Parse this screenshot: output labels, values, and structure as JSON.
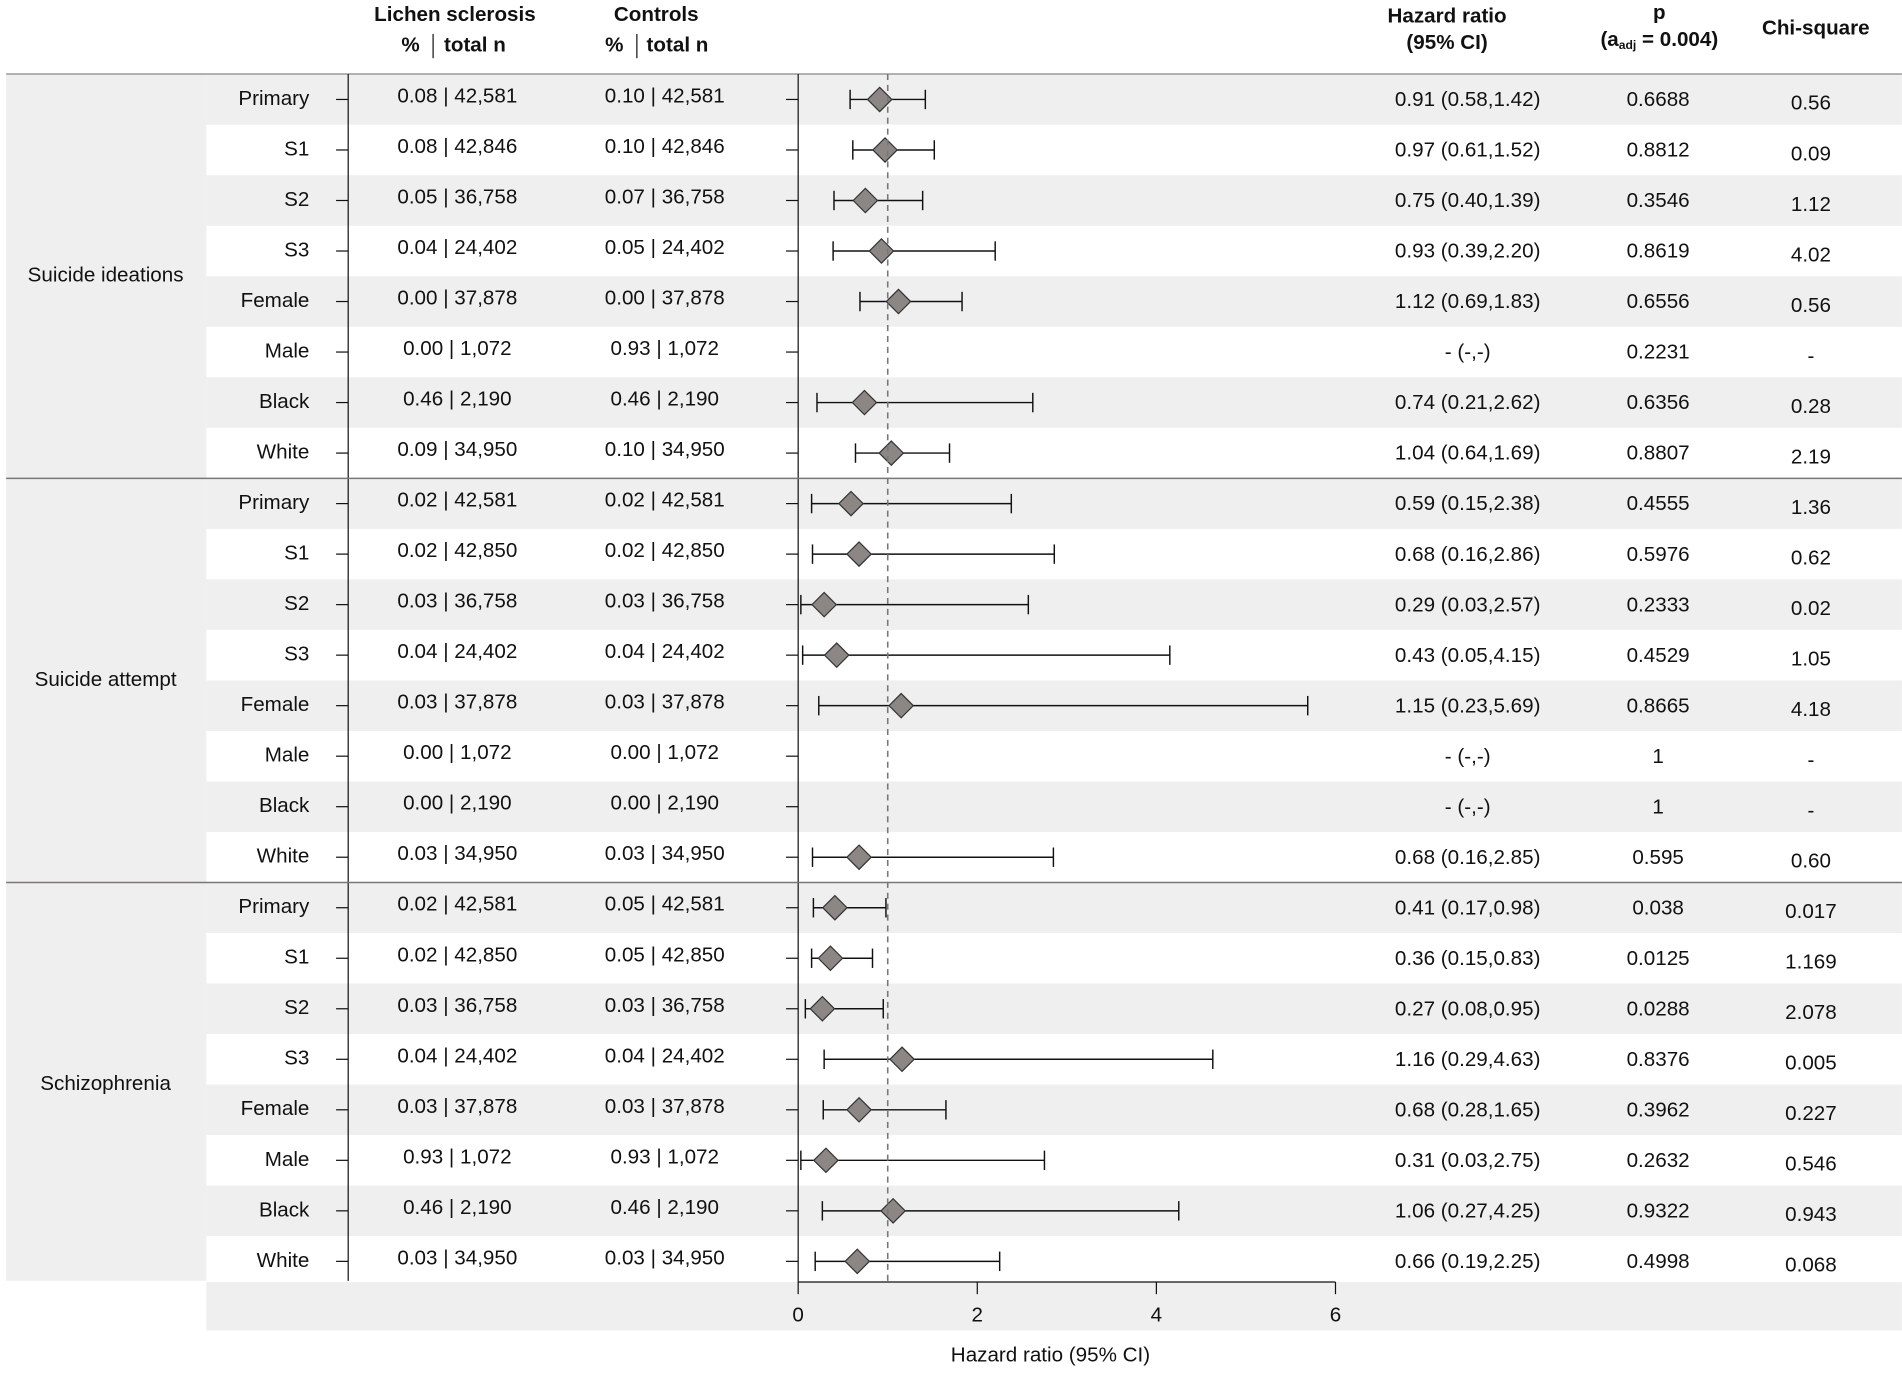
{
  "headers": {
    "lichen": {
      "title": "Lichen sclerosis",
      "pct": "%",
      "n": "total n"
    },
    "controls": {
      "title": "Controls",
      "pct": "%",
      "n": "total n"
    },
    "hr": {
      "title": "Hazard ratio",
      "sub": "(95% CI)"
    },
    "p": {
      "title": "p",
      "pre": "(a",
      "sub": "adj",
      "post": " = 0.004)"
    },
    "chi": {
      "title": "Chi-square"
    }
  },
  "chart_data": {
    "type": "forest",
    "xlabel": "Hazard ratio (95% CI)",
    "xlim": [
      0,
      6
    ],
    "xticks": [
      0,
      2,
      4,
      6
    ],
    "ref_line": 1,
    "marker_color": "#8c8785",
    "groups": [
      {
        "name": "Suicide ideations",
        "rows": [
          {
            "label": "Primary",
            "ls": "0.08 | 42,581",
            "ctrl": "0.10 | 42,581",
            "hr": 0.91,
            "lo": 0.58,
            "hi": 1.42,
            "hr_label": "0.91 (0.58,1.42)",
            "p": "0.6688",
            "chi": "0.56"
          },
          {
            "label": "S1",
            "ls": "0.08 | 42,846",
            "ctrl": "0.10 | 42,846",
            "hr": 0.97,
            "lo": 0.61,
            "hi": 1.52,
            "hr_label": "0.97 (0.61,1.52)",
            "p": "0.8812",
            "chi": "0.09"
          },
          {
            "label": "S2",
            "ls": "0.05 | 36,758",
            "ctrl": "0.07 | 36,758",
            "hr": 0.75,
            "lo": 0.4,
            "hi": 1.39,
            "hr_label": "0.75 (0.40,1.39)",
            "p": "0.3546",
            "chi": "1.12"
          },
          {
            "label": "S3",
            "ls": "0.04 | 24,402",
            "ctrl": "0.05 | 24,402",
            "hr": 0.93,
            "lo": 0.39,
            "hi": 2.2,
            "hr_label": "0.93 (0.39,2.20)",
            "p": "0.8619",
            "chi": "4.02"
          },
          {
            "label": "Female",
            "ls": "0.00 | 37,878",
            "ctrl": "0.00 | 37,878",
            "hr": 1.12,
            "lo": 0.69,
            "hi": 1.83,
            "hr_label": "1.12 (0.69,1.83)",
            "p": "0.6556",
            "chi": "0.56"
          },
          {
            "label": "Male",
            "ls": "0.00 | 1,072",
            "ctrl": "0.93 | 1,072",
            "hr": null,
            "lo": null,
            "hi": null,
            "hr_label": "- (-,-)",
            "p": "0.2231",
            "chi": "-"
          },
          {
            "label": "Black",
            "ls": "0.46 | 2,190",
            "ctrl": "0.46 | 2,190",
            "hr": 0.74,
            "lo": 0.21,
            "hi": 2.62,
            "hr_label": "0.74 (0.21,2.62)",
            "p": "0.6356",
            "chi": "0.28"
          },
          {
            "label": "White",
            "ls": "0.09 | 34,950",
            "ctrl": "0.10 | 34,950",
            "hr": 1.04,
            "lo": 0.64,
            "hi": 1.69,
            "hr_label": "1.04 (0.64,1.69)",
            "p": "0.8807",
            "chi": "2.19"
          }
        ]
      },
      {
        "name": "Suicide attempt",
        "rows": [
          {
            "label": "Primary",
            "ls": "0.02 | 42,581",
            "ctrl": "0.02 | 42,581",
            "hr": 0.59,
            "lo": 0.15,
            "hi": 2.38,
            "hr_label": "0.59 (0.15,2.38)",
            "p": "0.4555",
            "chi": "1.36"
          },
          {
            "label": "S1",
            "ls": "0.02 | 42,850",
            "ctrl": "0.02 | 42,850",
            "hr": 0.68,
            "lo": 0.16,
            "hi": 2.86,
            "hr_label": "0.68 (0.16,2.86)",
            "p": "0.5976",
            "chi": "0.62"
          },
          {
            "label": "S2",
            "ls": "0.03 | 36,758",
            "ctrl": "0.03 | 36,758",
            "hr": 0.29,
            "lo": 0.03,
            "hi": 2.57,
            "hr_label": "0.29 (0.03,2.57)",
            "p": "0.2333",
            "chi": "0.02"
          },
          {
            "label": "S3",
            "ls": "0.04 | 24,402",
            "ctrl": "0.04 | 24,402",
            "hr": 0.43,
            "lo": 0.05,
            "hi": 4.15,
            "hr_label": "0.43 (0.05,4.15)",
            "p": "0.4529",
            "chi": "1.05"
          },
          {
            "label": "Female",
            "ls": "0.03 | 37,878",
            "ctrl": "0.03 | 37,878",
            "hr": 1.15,
            "lo": 0.23,
            "hi": 5.69,
            "hr_label": "1.15 (0.23,5.69)",
            "p": "0.8665",
            "chi": "4.18"
          },
          {
            "label": "Male",
            "ls": "0.00 | 1,072",
            "ctrl": "0.00 | 1,072",
            "hr": null,
            "lo": null,
            "hi": null,
            "hr_label": "- (-,-)",
            "p": "1",
            "chi": "-"
          },
          {
            "label": "Black",
            "ls": "0.00 | 2,190",
            "ctrl": "0.00 | 2,190",
            "hr": null,
            "lo": null,
            "hi": null,
            "hr_label": "- (-,-)",
            "p": "1",
            "chi": "-"
          },
          {
            "label": "White",
            "ls": "0.03 | 34,950",
            "ctrl": "0.03 | 34,950",
            "hr": 0.68,
            "lo": 0.16,
            "hi": 2.85,
            "hr_label": "0.68 (0.16,2.85)",
            "p": "0.595",
            "chi": "0.60"
          }
        ]
      },
      {
        "name": "Schizophrenia",
        "rows": [
          {
            "label": "Primary",
            "ls": "0.02 | 42,581",
            "ctrl": "0.05 | 42,581",
            "hr": 0.41,
            "lo": 0.17,
            "hi": 0.98,
            "hr_label": "0.41 (0.17,0.98)",
            "p": "0.038",
            "chi": "0.017"
          },
          {
            "label": "S1",
            "ls": "0.02 | 42,850",
            "ctrl": "0.05 | 42,850",
            "hr": 0.36,
            "lo": 0.15,
            "hi": 0.83,
            "hr_label": "0.36 (0.15,0.83)",
            "p": "0.0125",
            "chi": "1.169"
          },
          {
            "label": "S2",
            "ls": "0.03 | 36,758",
            "ctrl": "0.03 | 36,758",
            "hr": 0.27,
            "lo": 0.08,
            "hi": 0.95,
            "hr_label": "0.27 (0.08,0.95)",
            "p": "0.0288",
            "chi": "2.078"
          },
          {
            "label": "S3",
            "ls": "0.04 | 24,402",
            "ctrl": "0.04 | 24,402",
            "hr": 1.16,
            "lo": 0.29,
            "hi": 4.63,
            "hr_label": "1.16 (0.29,4.63)",
            "p": "0.8376",
            "chi": "0.005"
          },
          {
            "label": "Female",
            "ls": "0.03 | 37,878",
            "ctrl": "0.03 | 37,878",
            "hr": 0.68,
            "lo": 0.28,
            "hi": 1.65,
            "hr_label": "0.68 (0.28,1.65)",
            "p": "0.3962",
            "chi": "0.227"
          },
          {
            "label": "Male",
            "ls": "0.93 | 1,072",
            "ctrl": "0.93 | 1,072",
            "hr": 0.31,
            "lo": 0.03,
            "hi": 2.75,
            "hr_label": "0.31 (0.03,2.75)",
            "p": "0.2632",
            "chi": "0.546"
          },
          {
            "label": "Black",
            "ls": "0.46 | 2,190",
            "ctrl": "0.46 | 2,190",
            "hr": 1.06,
            "lo": 0.27,
            "hi": 4.25,
            "hr_label": "1.06 (0.27,4.25)",
            "p": "0.9322",
            "chi": "0.943"
          },
          {
            "label": "White",
            "ls": "0.03 | 34,950",
            "ctrl": "0.03 | 34,950",
            "hr": 0.66,
            "lo": 0.19,
            "hi": 2.25,
            "hr_label": "0.66 (0.19,2.25)",
            "p": "0.4998",
            "chi": "0.068"
          }
        ]
      }
    ]
  }
}
